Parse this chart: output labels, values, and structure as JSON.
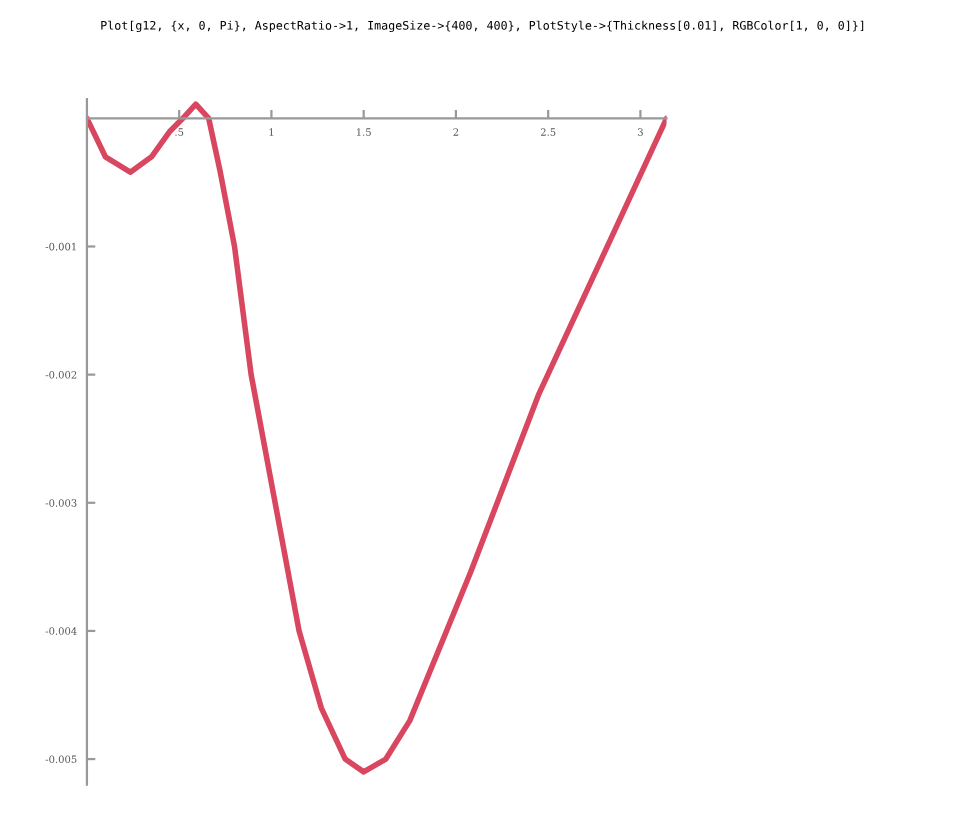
{
  "chart_data": {
    "type": "line",
    "title": "Plot[g12, {x, 0, Pi}, AspectRatio->1, ImageSize->{400, 400}, PlotStyle->{Thickness[0.01], RGBColor[1, 0, 0]}]",
    "x": [
      0,
      0.1,
      0.235,
      0.35,
      0.45,
      0.52,
      0.59,
      0.66,
      0.72,
      0.8,
      0.89,
      1.02,
      1.15,
      1.27,
      1.4,
      1.5,
      1.62,
      1.75,
      2.08,
      2.45,
      2.83,
      3.1416
    ],
    "series": [
      {
        "color": "#d9465f",
        "values": [
          0,
          -0.0003,
          -0.00042,
          -0.0003,
          -0.0001,
          0,
          0.00011,
          0,
          -0.0004,
          -0.001,
          -0.002,
          -0.003,
          -0.004,
          -0.0046,
          -0.005,
          -0.0051,
          -0.005,
          -0.0047,
          -0.00354,
          -0.00215,
          -0.00097,
          0
        ]
      }
    ],
    "xlim": [
      0,
      3.1416
    ],
    "ylim": [
      -0.0052,
      0.00015
    ],
    "xticks": [
      {
        "value": 0.5,
        "label": ".5"
      },
      1,
      1.5,
      2,
      2.5,
      3
    ],
    "yticks": [
      -0.001,
      -0.002,
      -0.003,
      -0.004,
      -0.005
    ],
    "grid": false,
    "legend": false
  }
}
